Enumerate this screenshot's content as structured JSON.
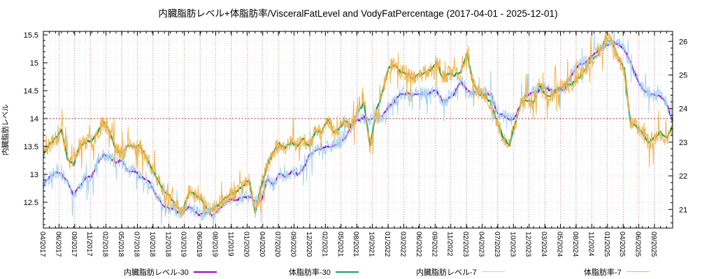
{
  "chart_data": {
    "type": "line",
    "title": "内臓脂肪レベル+体脂肪率/VisceralFatLevel and VodyFatPercentage (2017-04-01 - 2025-12-01)",
    "date_range": {
      "start": "2017-04-01",
      "end": "2025-12-01"
    },
    "months_total": 104,
    "x_tick_labels": [
      "04/2017",
      "06/2017",
      "09/2017",
      "11/2017",
      "02/2018",
      "05/2018",
      "07/2018",
      "10/2018",
      "12/2018",
      "03/2019",
      "06/2019",
      "08/2019",
      "11/2019",
      "01/2020",
      "04/2020",
      "07/2020",
      "09/2020",
      "12/2020",
      "02/2021",
      "05/2021",
      "08/2021",
      "10/2021",
      "01/2022",
      "03/2022",
      "06/2022",
      "09/2022",
      "11/2022",
      "02/2023",
      "04/2023",
      "07/2023",
      "10/2023",
      "12/2023",
      "03/2024",
      "05/2024",
      "08/2024",
      "11/2024",
      "01/2025",
      "04/2025",
      "06/2025",
      "09/2025"
    ],
    "y_left": {
      "label": "内臓脂肪レベル",
      "ticks": [
        12.5,
        13,
        13.5,
        14,
        14.5,
        15,
        15.5
      ],
      "minor_step": 0.1
    },
    "y_right": {
      "ticks": [
        21,
        22,
        23,
        24,
        25,
        26
      ],
      "minor_step": 0.2
    },
    "reference_line": {
      "axis": "left",
      "value": 14,
      "color": "#a52a2a"
    },
    "grid": {
      "major_v_color": "#b03434",
      "minor_v_color": "#c9c9c9",
      "h_color": "#c9c9c9"
    },
    "series": [
      {
        "name": "内臓脂肪レベル-30",
        "axis": "left",
        "color": "#9400d3",
        "width": 2.3,
        "seed": 3,
        "jitter": 0.022,
        "monthly": [
          12.82,
          12.94,
          13.04,
          13.0,
          12.88,
          12.62,
          12.78,
          12.95,
          12.96,
          13.22,
          13.35,
          13.3,
          13.22,
          13.25,
          13.05,
          13.07,
          12.95,
          12.92,
          12.78,
          12.55,
          12.42,
          12.38,
          12.34,
          12.3,
          12.42,
          12.35,
          12.27,
          12.31,
          12.27,
          12.38,
          12.48,
          12.55,
          12.55,
          12.58,
          12.6,
          12.52,
          12.5,
          12.92,
          12.8,
          13.02,
          12.95,
          13.05,
          13.0,
          13.1,
          13.35,
          13.43,
          13.45,
          13.5,
          13.52,
          13.57,
          13.68,
          13.88,
          13.97,
          14.02,
          13.98,
          14.02,
          14.04,
          14.2,
          14.3,
          14.44,
          14.45,
          14.42,
          14.45,
          14.44,
          14.47,
          14.5,
          14.3,
          14.36,
          14.46,
          14.68,
          14.5,
          14.46,
          14.45,
          14.45,
          14.43,
          14.1,
          14.05,
          13.98,
          14.02,
          14.3,
          14.42,
          14.48,
          14.5,
          14.56,
          14.5,
          14.52,
          14.5,
          14.72,
          14.9,
          14.98,
          15.05,
          15.15,
          15.25,
          15.32,
          15.37,
          15.34,
          15.25,
          15.0,
          14.73,
          14.52,
          14.45,
          14.42,
          14.4,
          14.28,
          13.95
        ]
      },
      {
        "name": "体脂肪率-30",
        "axis": "right",
        "color": "#169d60",
        "width": 2.3,
        "seed": 7,
        "jitter": 0.04,
        "monthly": [
          22.6,
          22.95,
          23.1,
          23.35,
          22.5,
          22.32,
          22.9,
          23.0,
          23.05,
          23.3,
          23.62,
          23.3,
          22.8,
          22.65,
          22.9,
          22.85,
          22.9,
          22.55,
          22.2,
          21.85,
          21.55,
          21.35,
          21.1,
          20.85,
          21.5,
          21.45,
          21.3,
          21.05,
          21.0,
          21.15,
          21.35,
          21.45,
          21.55,
          21.7,
          21.9,
          20.9,
          21.7,
          22.3,
          22.7,
          22.95,
          22.85,
          23.0,
          22.9,
          23.1,
          22.85,
          23.35,
          23.3,
          23.68,
          23.27,
          23.42,
          23.64,
          23.5,
          23.9,
          24.15,
          22.9,
          23.9,
          24.45,
          25.2,
          25.3,
          25.1,
          25.05,
          24.9,
          25.0,
          25.05,
          25.15,
          25.4,
          24.9,
          25.05,
          25.0,
          25.1,
          25.65,
          24.8,
          24.42,
          24.4,
          24.15,
          23.6,
          23.15,
          22.9,
          23.6,
          24.2,
          24.25,
          24.2,
          24.7,
          24.4,
          24.37,
          24.6,
          24.7,
          24.7,
          24.85,
          25.0,
          25.3,
          25.5,
          25.7,
          26.1,
          25.95,
          25.5,
          25.2,
          23.6,
          23.45,
          23.3,
          23.0,
          23.15,
          23.3,
          23.1,
          23.5
        ]
      },
      {
        "name": "内臓脂肪レベル-7",
        "axis": "left",
        "color": "#a9d4ee",
        "width": 1,
        "derived_from": "内臓脂肪レベル-30",
        "noise_amp": 0.12,
        "spike_amp": 0.42,
        "spike_prob": 0.09,
        "seed": 11
      },
      {
        "name": "体脂肪率-7",
        "axis": "right",
        "color": "#f0b44c",
        "width": 1,
        "derived_from": "体脂肪率-30",
        "noise_amp": 0.24,
        "spike_amp": 0.78,
        "spike_prob": 0.1,
        "seed": 23
      }
    ]
  },
  "legend": [
    {
      "label": "内臓脂肪レベル-30",
      "color": "#9400d3",
      "thick": true
    },
    {
      "label": "体脂肪率-30",
      "color": "#169d60",
      "thick": true
    },
    {
      "label": "内臓脂肪レベル-7",
      "color": "#a9d4ee",
      "thick": false
    },
    {
      "label": "体脂肪率-7",
      "color": "#f0b44c",
      "thick": false
    }
  ]
}
